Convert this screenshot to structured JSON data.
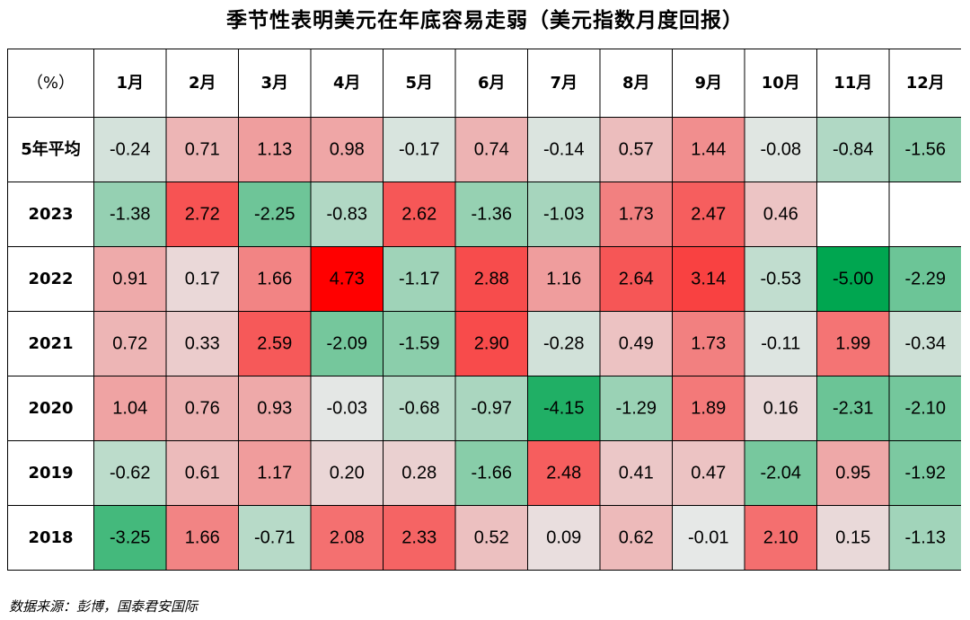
{
  "page": {
    "title": "季节性表明美元在年底容易走弱（美元指数月度回报）",
    "source": "数据来源：彭博，国泰君安国际"
  },
  "chart_data": {
    "type": "heatmap",
    "title": "季节性表明美元在年底容易走弱（美元指数月度回报）",
    "corner_label": "（%）",
    "columns": [
      "1月",
      "2月",
      "3月",
      "4月",
      "5月",
      "6月",
      "7月",
      "8月",
      "9月",
      "10月",
      "11月",
      "12月"
    ],
    "rows": [
      {
        "label": "5年平均",
        "values": [
          -0.24,
          0.71,
          1.13,
          0.98,
          -0.17,
          0.74,
          -0.14,
          0.57,
          1.44,
          -0.08,
          -0.84,
          -1.56
        ]
      },
      {
        "label": "2023",
        "values": [
          -1.38,
          2.72,
          -2.25,
          -0.83,
          2.62,
          -1.36,
          -1.03,
          1.73,
          2.47,
          0.46,
          null,
          null
        ]
      },
      {
        "label": "2022",
        "values": [
          0.91,
          0.17,
          1.66,
          4.73,
          -1.17,
          2.88,
          1.16,
          2.64,
          3.14,
          -0.53,
          -5.0,
          -2.29
        ]
      },
      {
        "label": "2021",
        "values": [
          0.72,
          0.33,
          2.59,
          -2.09,
          -1.59,
          2.9,
          -0.28,
          0.49,
          1.73,
          -0.11,
          1.99,
          -0.34
        ]
      },
      {
        "label": "2020",
        "values": [
          1.04,
          0.76,
          0.93,
          -0.03,
          -0.68,
          -0.97,
          -4.15,
          -1.29,
          1.89,
          0.16,
          -2.31,
          -2.1
        ]
      },
      {
        "label": "2019",
        "values": [
          -0.62,
          0.61,
          1.17,
          0.2,
          0.28,
          -1.66,
          2.48,
          0.41,
          0.47,
          -2.04,
          0.95,
          -1.92
        ]
      },
      {
        "label": "2018",
        "values": [
          -3.25,
          1.66,
          -0.71,
          2.08,
          2.33,
          0.52,
          0.09,
          0.62,
          -0.01,
          2.1,
          0.15,
          -1.13
        ]
      }
    ],
    "color_scale": {
      "min": -5.0,
      "max": 4.73,
      "negative_color": "#00a650",
      "neutral_color": "#e8e8e8",
      "positive_color": "#ff0000",
      "empty_color": "#ffffff"
    }
  }
}
